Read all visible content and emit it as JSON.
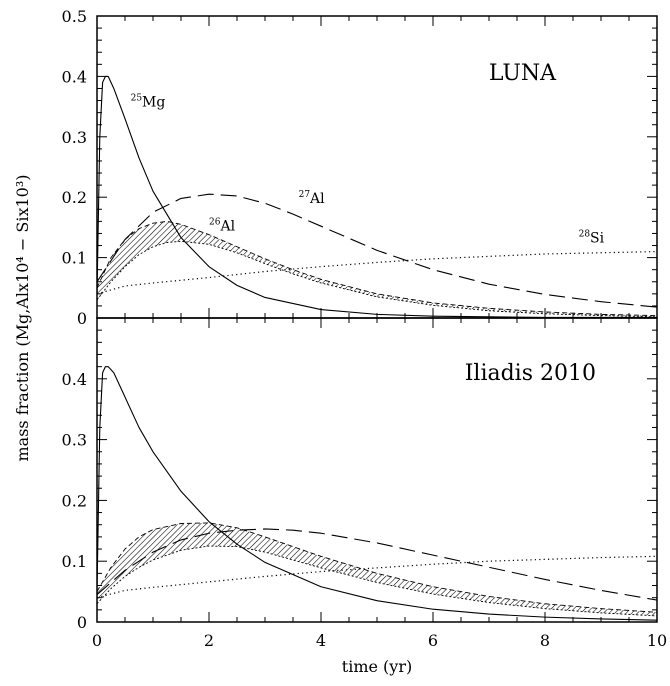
{
  "chart_data": {
    "type": "line",
    "xlabel": "time (yr)",
    "ylabel": "mass fraction  (Mg,Alx10⁴ − Six10³)",
    "xlim": [
      0,
      10
    ],
    "ylim": [
      0,
      0.5
    ],
    "x_ticks": [
      "0",
      "2",
      "4",
      "6",
      "8",
      "10"
    ],
    "y_ticks_top": [
      "0",
      "0.1",
      "0.2",
      "0.3",
      "0.4",
      "0.5"
    ],
    "y_ticks_bottom": [
      "0",
      "0.1",
      "0.2",
      "0.3",
      "0.4"
    ],
    "grid": false,
    "panels": [
      {
        "title": "LUNA",
        "labels": [
          {
            "mass": "25",
            "element": "Mg",
            "x": 0.6,
            "y": 0.35
          },
          {
            "mass": "27",
            "element": "Al",
            "x": 3.6,
            "y": 0.19
          },
          {
            "mass": "26",
            "element": "Al",
            "x": 2.0,
            "y": 0.145
          },
          {
            "mass": "28",
            "element": "Si",
            "x": 8.6,
            "y": 0.125
          }
        ],
        "series": [
          {
            "isotope": "Mg-25",
            "style": "solid",
            "x": [
              0,
              0.05,
              0.1,
              0.15,
              0.2,
              0.3,
              0.5,
              0.75,
              1,
              1.5,
              2,
              2.5,
              3,
              4,
              5,
              6,
              7,
              8,
              9,
              10
            ],
            "y": [
              0.04,
              0.3,
              0.39,
              0.4,
              0.4,
              0.38,
              0.33,
              0.265,
              0.21,
              0.133,
              0.085,
              0.054,
              0.034,
              0.014,
              0.006,
              0.003,
              0.002,
              0.001,
              0.001,
              0.001
            ]
          },
          {
            "isotope": "Al-27",
            "style": "dashed",
            "x": [
              0,
              0.5,
              1,
              1.5,
              2,
              2.5,
              3,
              3.5,
              4,
              5,
              6,
              7,
              8,
              9,
              10
            ],
            "y": [
              0.06,
              0.13,
              0.175,
              0.198,
              0.205,
              0.202,
              0.19,
              0.172,
              0.152,
              0.112,
              0.08,
              0.056,
              0.039,
              0.027,
              0.018
            ]
          },
          {
            "isotope": "Si-28",
            "style": "dotted",
            "x": [
              0,
              0.5,
              1,
              2,
              3,
              4,
              5,
              6,
              7,
              8,
              9,
              10
            ],
            "y": [
              0.04,
              0.053,
              0.058,
              0.067,
              0.077,
              0.085,
              0.092,
              0.098,
              0.102,
              0.106,
              0.108,
              0.11
            ]
          },
          {
            "isotope": "Al-26",
            "style": "band",
            "x": [
              0,
              0.25,
              0.5,
              0.75,
              1,
              1.25,
              1.5,
              2,
              2.5,
              3,
              3.5,
              4,
              5,
              6,
              7,
              8,
              9,
              10
            ],
            "y_upper": [
              0.05,
              0.1,
              0.13,
              0.148,
              0.157,
              0.16,
              0.155,
              0.138,
              0.118,
              0.098,
              0.08,
              0.064,
              0.04,
              0.025,
              0.016,
              0.01,
              0.006,
              0.004
            ],
            "y_lower": [
              0.03,
              0.06,
              0.085,
              0.105,
              0.118,
              0.125,
              0.127,
              0.122,
              0.108,
              0.09,
              0.073,
              0.058,
              0.035,
              0.021,
              0.012,
              0.007,
              0.004,
              0.002
            ]
          }
        ]
      },
      {
        "title": "Iliadis 2010",
        "labels": [],
        "series": [
          {
            "isotope": "Mg-25",
            "style": "solid",
            "x": [
              0,
              0.05,
              0.1,
              0.15,
              0.2,
              0.3,
              0.5,
              0.75,
              1,
              1.5,
              2,
              2.5,
              3,
              4,
              5,
              6,
              7,
              8,
              9,
              10
            ],
            "y": [
              0.05,
              0.32,
              0.41,
              0.42,
              0.42,
              0.41,
              0.37,
              0.32,
              0.28,
              0.215,
              0.165,
              0.128,
              0.098,
              0.058,
              0.035,
              0.021,
              0.013,
              0.008,
              0.005,
              0.003
            ]
          },
          {
            "isotope": "Al-27",
            "style": "dashed",
            "x": [
              0,
              0.5,
              1,
              1.5,
              2,
              2.5,
              3,
              3.5,
              4,
              5,
              6,
              7,
              8,
              9,
              10
            ],
            "y": [
              0.045,
              0.085,
              0.115,
              0.135,
              0.146,
              0.151,
              0.153,
              0.151,
              0.146,
              0.13,
              0.11,
              0.09,
              0.07,
              0.052,
              0.036
            ]
          },
          {
            "isotope": "Si-28",
            "style": "dotted",
            "x": [
              0,
              0.5,
              1,
              2,
              3,
              4,
              5,
              6,
              7,
              8,
              9,
              10
            ],
            "y": [
              0.04,
              0.052,
              0.057,
              0.066,
              0.075,
              0.083,
              0.089,
              0.095,
              0.1,
              0.103,
              0.106,
              0.108
            ]
          },
          {
            "isotope": "Al-26",
            "style": "band",
            "x": [
              0,
              0.25,
              0.5,
              0.75,
              1,
              1.5,
              2,
              2.5,
              3,
              3.5,
              4,
              5,
              6,
              7,
              8,
              9,
              10
            ],
            "y_upper": [
              0.05,
              0.09,
              0.12,
              0.14,
              0.152,
              0.162,
              0.163,
              0.155,
              0.14,
              0.124,
              0.108,
              0.08,
              0.058,
              0.042,
              0.03,
              0.022,
              0.016
            ],
            "y_lower": [
              0.03,
              0.055,
              0.075,
              0.09,
              0.102,
              0.118,
              0.125,
              0.124,
              0.115,
              0.102,
              0.089,
              0.065,
              0.046,
              0.032,
              0.022,
              0.015,
              0.01
            ]
          }
        ]
      }
    ]
  }
}
